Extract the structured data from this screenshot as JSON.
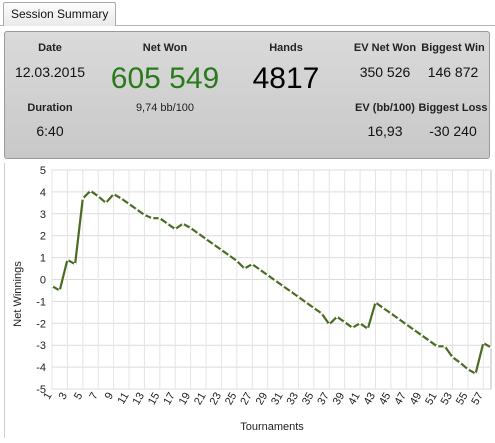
{
  "tab": {
    "label": "Session Summary"
  },
  "summary": {
    "date_label": "Date",
    "date_value": "12.03.2015",
    "duration_label": "Duration",
    "duration_value": "6:40",
    "netwon_label": "Net Won",
    "netwon_value": "605 549",
    "bb_value": "9,74 bb/100",
    "hands_label": "Hands",
    "hands_value": "4817",
    "ev_net_label": "EV Net Won",
    "ev_net_value": "350 526",
    "ev_bb_label": "EV (bb/100)",
    "ev_bb_value": "16,93",
    "biggest_win_label": "Biggest Win",
    "biggest_win_value": "146 872",
    "biggest_loss_label": "Biggest Loss",
    "biggest_loss_value": "-30 240"
  },
  "colors": {
    "net_won": "#2a7a1c",
    "line": "#4a6b22",
    "marker": "#ffffff"
  },
  "chart_data": {
    "type": "line",
    "xlabel": "Tournaments",
    "ylabel": "Net Winnings",
    "ylim": [
      -5,
      5
    ],
    "xlim": [
      1,
      58
    ],
    "yticks": [
      -5,
      -4,
      -3,
      -2,
      -1,
      0,
      1,
      2,
      3,
      4,
      5
    ],
    "xticks": [
      1,
      3,
      5,
      7,
      9,
      11,
      13,
      15,
      17,
      19,
      21,
      23,
      25,
      27,
      29,
      31,
      33,
      35,
      37,
      39,
      41,
      43,
      45,
      47,
      49,
      51,
      53,
      55,
      57
    ],
    "grid": true,
    "series": [
      {
        "x": [
          1,
          2,
          3,
          4,
          5,
          6,
          7,
          8,
          9,
          10,
          11,
          12,
          13,
          14,
          15,
          16,
          17,
          18,
          19,
          20,
          21,
          22,
          23,
          24,
          25,
          26,
          27,
          28,
          29,
          30,
          31,
          32,
          33,
          34,
          35,
          36,
          37,
          38,
          39,
          40,
          41,
          42,
          43,
          44,
          45,
          46,
          47,
          48,
          49,
          50,
          51,
          52,
          53,
          54,
          55,
          56,
          57,
          58
        ],
        "values": [
          -0.3,
          -0.5,
          0.9,
          0.7,
          3.7,
          4.05,
          3.8,
          3.5,
          3.9,
          3.7,
          3.45,
          3.2,
          2.95,
          2.8,
          2.8,
          2.55,
          2.3,
          2.55,
          2.35,
          2.1,
          1.85,
          1.6,
          1.35,
          1.1,
          0.85,
          0.5,
          0.7,
          0.45,
          0.2,
          -0.05,
          -0.3,
          -0.55,
          -0.8,
          -1.05,
          -1.3,
          -1.55,
          -2.05,
          -1.7,
          -1.95,
          -2.2,
          -2.0,
          -2.25,
          -1.05,
          -1.3,
          -1.55,
          -1.8,
          -2.05,
          -2.3,
          -2.55,
          -2.8,
          -3.05,
          -3.05,
          -3.55,
          -3.8,
          -4.1,
          -4.3,
          -2.9,
          -3.1
        ]
      }
    ]
  }
}
